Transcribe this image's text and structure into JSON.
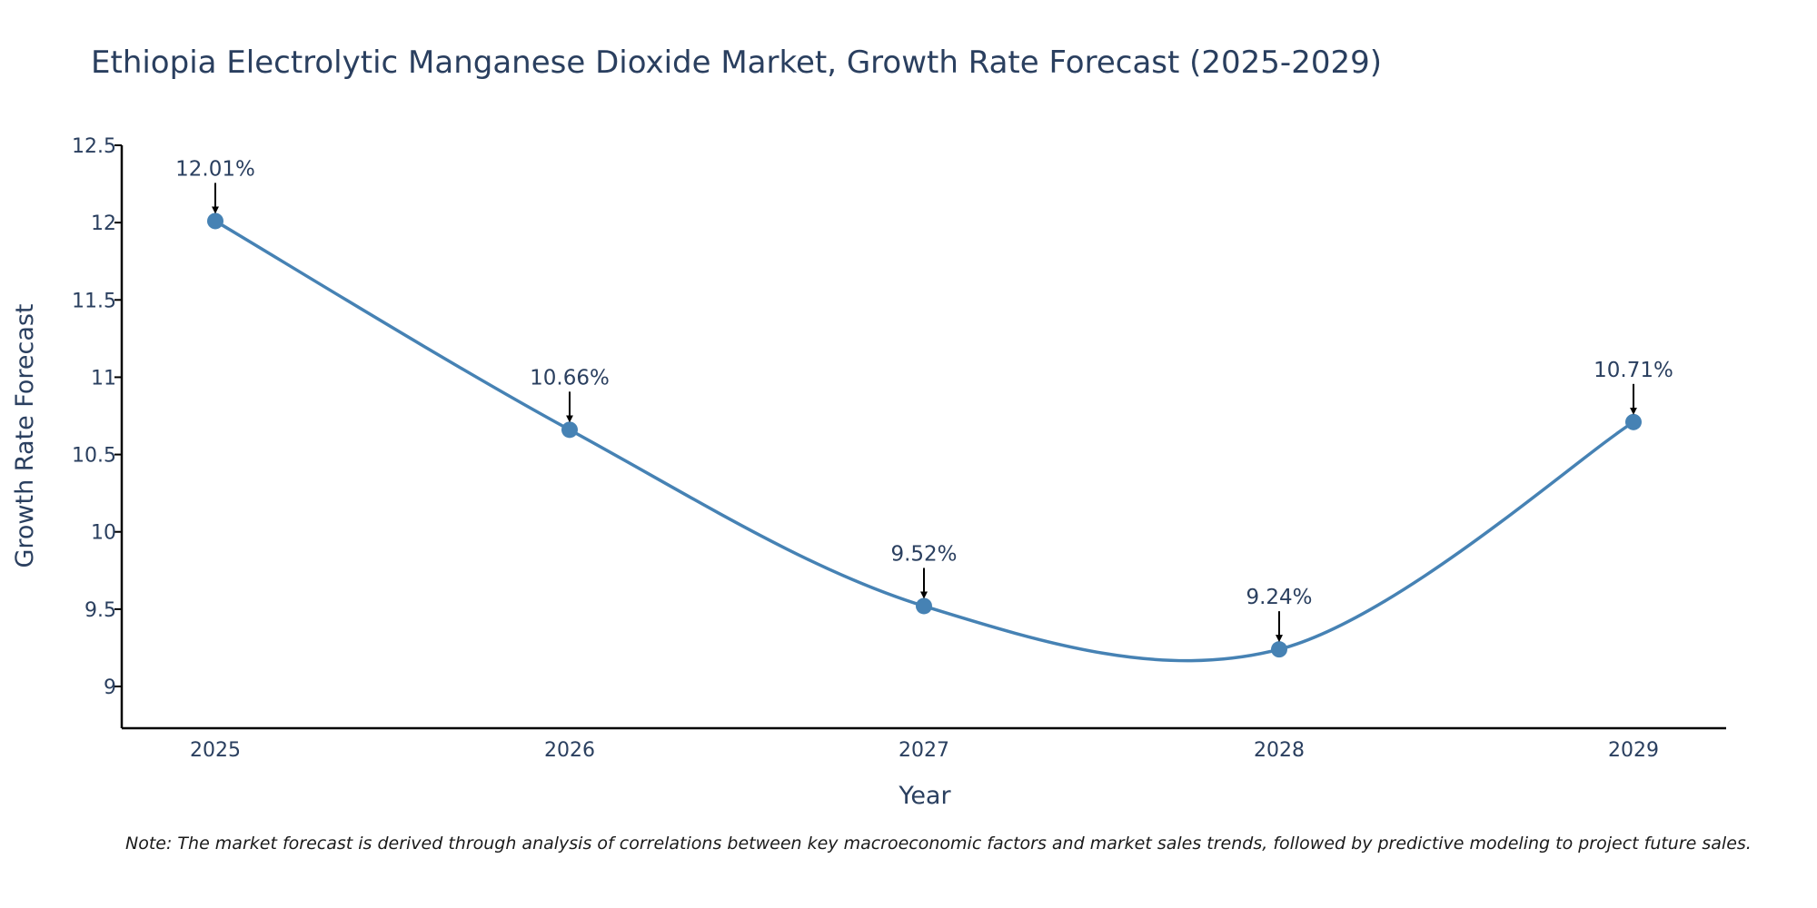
{
  "chart_data": {
    "type": "line",
    "title": "Ethiopia Electrolytic Manganese Dioxide Market, Growth Rate Forecast (2025-2029)",
    "xlabel": "Year",
    "ylabel": "Growth Rate Forecast",
    "categories": [
      "2025",
      "2026",
      "2027",
      "2028",
      "2029"
    ],
    "values": [
      12.01,
      10.66,
      9.52,
      9.24,
      10.71
    ],
    "data_labels": [
      "12.01%",
      "10.66%",
      "9.52%",
      "9.24%",
      "10.71%"
    ],
    "ylim": [
      8.73,
      12.5
    ],
    "yticks": [
      9,
      9.5,
      10,
      10.5,
      11,
      11.5,
      12,
      12.5
    ],
    "ytick_labels": [
      "9",
      "9.5",
      "10",
      "10.5",
      "11",
      "11.5",
      "12",
      "12.5"
    ],
    "line_shape": "spline",
    "grid": false
  },
  "colors": {
    "line": "#4682b4",
    "marker": "#4682b4",
    "axis": "#000000",
    "text": "#2a3f5f",
    "arrow": "#000000"
  },
  "note": "Note: The market forecast is derived through analysis of correlations between key macroeconomic factors and market sales trends, followed by predictive modeling to project future sales."
}
